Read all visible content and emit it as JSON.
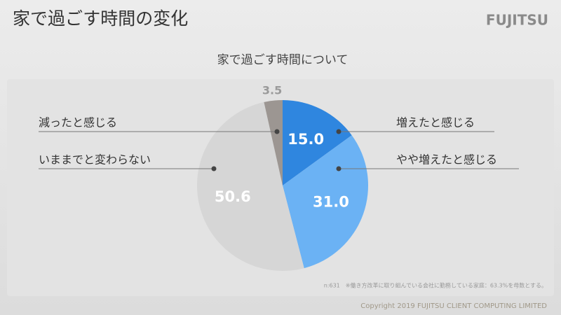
{
  "chart_data": {
    "type": "pie",
    "title": "家で過ごす時間の変化",
    "subtitle": "家で過ごす時間について",
    "logo": "FUJITSU",
    "categories": [
      "増えたと感じる",
      "やや増えたと感じる",
      "いままでと変わらない",
      "減ったと感じる"
    ],
    "values": [
      15.0,
      31.0,
      50.6,
      3.5
    ],
    "value_labels": [
      "15.0",
      "31.0",
      "50.6",
      "3.5"
    ],
    "colors": [
      "#2f86df",
      "#6bb2f4",
      "#d6d6d6",
      "#9c9692"
    ],
    "note": "n:631　※働き方改革に取り組んでいる会社に勤務している家庭：63.3%を母数とする。",
    "copyright": "Copyright 2019 FUJITSU CLIENT COMPUTING LIMITED"
  }
}
